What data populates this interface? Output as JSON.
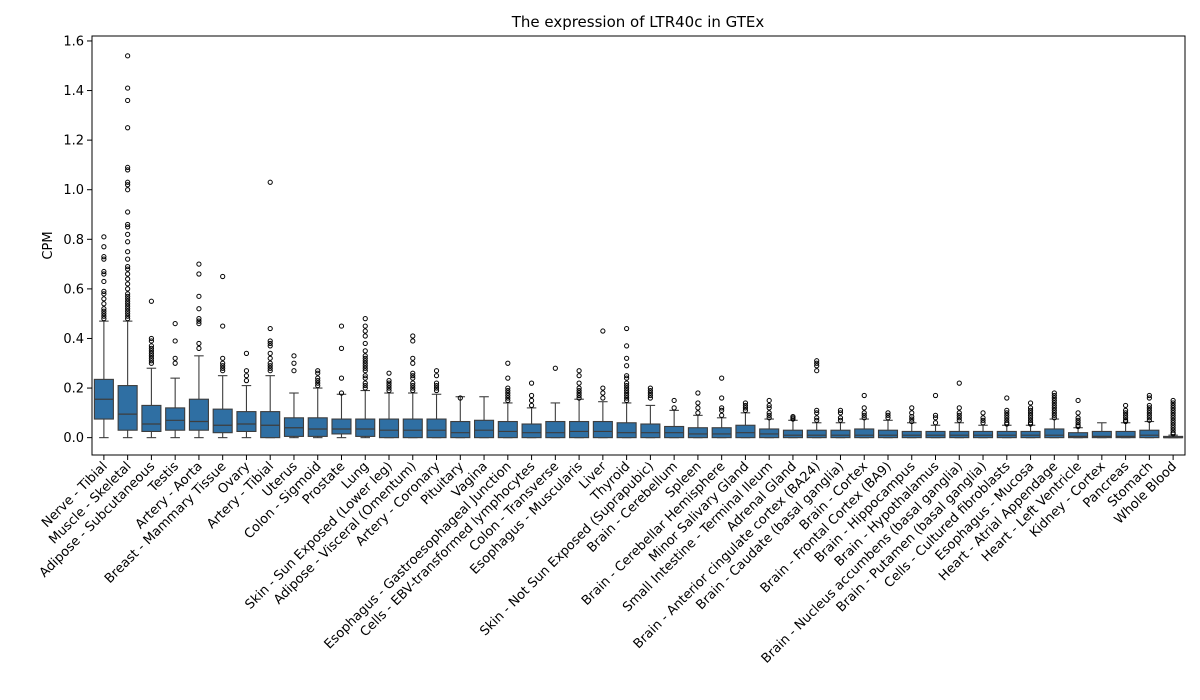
{
  "chart_data": {
    "type": "box",
    "title": "The expression of LTR40c in GTEx",
    "xlabel": "",
    "ylabel": "CPM",
    "ylim": [
      -0.07,
      1.62
    ],
    "yticks": [
      0.0,
      0.2,
      0.4,
      0.6,
      0.8,
      1.0,
      1.2,
      1.4,
      1.6
    ],
    "ytick_labels": [
      "0.0",
      "0.2",
      "0.4",
      "0.6",
      "0.8",
      "1.0",
      "1.2",
      "1.4",
      "1.6"
    ],
    "grid": false,
    "legend": "none",
    "box_color": "#2f6fa3",
    "categories": [
      {
        "name": "Nerve - Tibial",
        "whisker_low": 0.0,
        "q1": 0.075,
        "median": 0.155,
        "q3": 0.235,
        "whisker_high": 0.47,
        "outliers": [
          0.48,
          0.49,
          0.5,
          0.51,
          0.52,
          0.54,
          0.56,
          0.58,
          0.59,
          0.63,
          0.66,
          0.67,
          0.72,
          0.73,
          0.77,
          0.81
        ]
      },
      {
        "name": "Muscle - Skeletal",
        "whisker_low": 0.0,
        "q1": 0.03,
        "median": 0.095,
        "q3": 0.21,
        "whisker_high": 0.47,
        "outliers": [
          0.48,
          0.49,
          0.5,
          0.51,
          0.52,
          0.53,
          0.54,
          0.55,
          0.56,
          0.57,
          0.58,
          0.6,
          0.62,
          0.64,
          0.66,
          0.68,
          0.69,
          0.72,
          0.75,
          0.79,
          0.82,
          0.85,
          0.86,
          0.91,
          1.0,
          1.02,
          1.03,
          1.08,
          1.09,
          1.25,
          1.36,
          1.41,
          1.54
        ]
      },
      {
        "name": "Adipose - Subcutaneous",
        "whisker_low": 0.0,
        "q1": 0.025,
        "median": 0.055,
        "q3": 0.13,
        "whisker_high": 0.28,
        "outliers": [
          0.3,
          0.31,
          0.32,
          0.33,
          0.34,
          0.35,
          0.36,
          0.37,
          0.39,
          0.4,
          0.55
        ]
      },
      {
        "name": "Testis",
        "whisker_low": 0.0,
        "q1": 0.03,
        "median": 0.07,
        "q3": 0.12,
        "whisker_high": 0.24,
        "outliers": [
          0.3,
          0.32,
          0.39,
          0.46
        ]
      },
      {
        "name": "Artery - Aorta",
        "whisker_low": 0.0,
        "q1": 0.03,
        "median": 0.065,
        "q3": 0.155,
        "whisker_high": 0.33,
        "outliers": [
          0.36,
          0.38,
          0.46,
          0.47,
          0.48,
          0.52,
          0.57,
          0.66,
          0.7
        ]
      },
      {
        "name": "Breast - Mammary Tissue",
        "whisker_low": 0.0,
        "q1": 0.02,
        "median": 0.05,
        "q3": 0.115,
        "whisker_high": 0.25,
        "outliers": [
          0.27,
          0.28,
          0.29,
          0.3,
          0.32,
          0.45,
          0.65
        ]
      },
      {
        "name": "Ovary",
        "whisker_low": 0.0,
        "q1": 0.025,
        "median": 0.055,
        "q3": 0.105,
        "whisker_high": 0.21,
        "outliers": [
          0.23,
          0.25,
          0.27,
          0.34
        ]
      },
      {
        "name": "Artery - Tibial",
        "whisker_low": 0.0,
        "q1": 0.0,
        "median": 0.05,
        "q3": 0.105,
        "whisker_high": 0.25,
        "outliers": [
          0.27,
          0.28,
          0.29,
          0.3,
          0.32,
          0.34,
          0.37,
          0.38,
          0.39,
          0.44,
          1.03
        ]
      },
      {
        "name": "Uterus",
        "whisker_low": 0.0,
        "q1": 0.005,
        "median": 0.04,
        "q3": 0.08,
        "whisker_high": 0.18,
        "outliers": [
          0.27,
          0.3,
          0.33
        ]
      },
      {
        "name": "Colon - Sigmoid",
        "whisker_low": 0.0,
        "q1": 0.005,
        "median": 0.035,
        "q3": 0.08,
        "whisker_high": 0.2,
        "outliers": [
          0.21,
          0.22,
          0.23,
          0.24,
          0.26,
          0.27
        ]
      },
      {
        "name": "Prostate",
        "whisker_low": 0.0,
        "q1": 0.015,
        "median": 0.035,
        "q3": 0.075,
        "whisker_high": 0.175,
        "outliers": [
          0.18,
          0.24,
          0.36,
          0.45
        ]
      },
      {
        "name": "Lung",
        "whisker_low": 0.0,
        "q1": 0.005,
        "median": 0.035,
        "q3": 0.075,
        "whisker_high": 0.19,
        "outliers": [
          0.2,
          0.21,
          0.22,
          0.24,
          0.25,
          0.27,
          0.28,
          0.29,
          0.3,
          0.31,
          0.32,
          0.33,
          0.35,
          0.38,
          0.41,
          0.43,
          0.45,
          0.48
        ]
      },
      {
        "name": "Skin - Sun Exposed (Lower leg)",
        "whisker_low": 0.0,
        "q1": 0.0,
        "median": 0.03,
        "q3": 0.075,
        "whisker_high": 0.18,
        "outliers": [
          0.19,
          0.2,
          0.21,
          0.22,
          0.23,
          0.26
        ]
      },
      {
        "name": "Adipose - Visceral (Omentum)",
        "whisker_low": 0.0,
        "q1": 0.0,
        "median": 0.03,
        "q3": 0.075,
        "whisker_high": 0.18,
        "outliers": [
          0.19,
          0.2,
          0.21,
          0.22,
          0.24,
          0.25,
          0.26,
          0.3,
          0.32,
          0.39,
          0.41
        ]
      },
      {
        "name": "Artery - Coronary",
        "whisker_low": 0.0,
        "q1": 0.0,
        "median": 0.03,
        "q3": 0.075,
        "whisker_high": 0.175,
        "outliers": [
          0.19,
          0.2,
          0.21,
          0.22,
          0.25,
          0.27
        ]
      },
      {
        "name": "Pituitary",
        "whisker_low": 0.0,
        "q1": 0.0,
        "median": 0.02,
        "q3": 0.065,
        "whisker_high": 0.165,
        "outliers": [
          0.16
        ]
      },
      {
        "name": "Vagina",
        "whisker_low": 0.0,
        "q1": 0.0,
        "median": 0.03,
        "q3": 0.07,
        "whisker_high": 0.165,
        "outliers": []
      },
      {
        "name": "Esophagus - Gastroesophageal Junction",
        "whisker_low": 0.0,
        "q1": 0.0,
        "median": 0.025,
        "q3": 0.065,
        "whisker_high": 0.14,
        "outliers": [
          0.15,
          0.16,
          0.17,
          0.18,
          0.19,
          0.2,
          0.24,
          0.3
        ]
      },
      {
        "name": "Cells - EBV-transformed lymphocytes",
        "whisker_low": 0.0,
        "q1": 0.0,
        "median": 0.02,
        "q3": 0.055,
        "whisker_high": 0.12,
        "outliers": [
          0.13,
          0.15,
          0.17,
          0.22
        ]
      },
      {
        "name": "Colon - Transverse",
        "whisker_low": 0.0,
        "q1": 0.0,
        "median": 0.02,
        "q3": 0.065,
        "whisker_high": 0.14,
        "outliers": [
          0.28
        ]
      },
      {
        "name": "Esophagus - Muscularis",
        "whisker_low": 0.0,
        "q1": 0.0,
        "median": 0.025,
        "q3": 0.065,
        "whisker_high": 0.155,
        "outliers": [
          0.16,
          0.17,
          0.18,
          0.19,
          0.2,
          0.22,
          0.25,
          0.27
        ]
      },
      {
        "name": "Liver",
        "whisker_low": 0.0,
        "q1": 0.0,
        "median": 0.025,
        "q3": 0.065,
        "whisker_high": 0.145,
        "outliers": [
          0.16,
          0.18,
          0.2,
          0.43
        ]
      },
      {
        "name": "Thyroid",
        "whisker_low": 0.0,
        "q1": 0.0,
        "median": 0.02,
        "q3": 0.06,
        "whisker_high": 0.14,
        "outliers": [
          0.15,
          0.16,
          0.17,
          0.18,
          0.19,
          0.2,
          0.21,
          0.22,
          0.24,
          0.25,
          0.29,
          0.32,
          0.37,
          0.44
        ]
      },
      {
        "name": "Skin - Not Sun Exposed (Suprapubic)",
        "whisker_low": 0.0,
        "q1": 0.0,
        "median": 0.02,
        "q3": 0.055,
        "whisker_high": 0.13,
        "outliers": [
          0.16,
          0.17,
          0.18,
          0.19,
          0.2
        ]
      },
      {
        "name": "Brain - Cerebellum",
        "whisker_low": 0.0,
        "q1": 0.0,
        "median": 0.02,
        "q3": 0.045,
        "whisker_high": 0.11,
        "outliers": [
          0.12,
          0.15
        ]
      },
      {
        "name": "Spleen",
        "whisker_low": 0.0,
        "q1": 0.0,
        "median": 0.015,
        "q3": 0.04,
        "whisker_high": 0.09,
        "outliers": [
          0.1,
          0.12,
          0.14,
          0.18
        ]
      },
      {
        "name": "Brain - Cerebellar Hemisphere",
        "whisker_low": 0.0,
        "q1": 0.0,
        "median": 0.015,
        "q3": 0.04,
        "whisker_high": 0.08,
        "outliers": [
          0.09,
          0.11,
          0.12,
          0.16,
          0.24
        ]
      },
      {
        "name": "Minor Salivary Gland",
        "whisker_low": 0.0,
        "q1": 0.0,
        "median": 0.02,
        "q3": 0.05,
        "whisker_high": 0.1,
        "outliers": [
          0.11,
          0.12,
          0.13,
          0.14
        ]
      },
      {
        "name": "Small Intestine - Terminal Ileum",
        "whisker_low": 0.0,
        "q1": 0.0,
        "median": 0.015,
        "q3": 0.035,
        "whisker_high": 0.075,
        "outliers": [
          0.08,
          0.09,
          0.1,
          0.12,
          0.13,
          0.15
        ]
      },
      {
        "name": "Adrenal Gland",
        "whisker_low": 0.0,
        "q1": 0.0,
        "median": 0.01,
        "q3": 0.03,
        "whisker_high": 0.07,
        "outliers": [
          0.075,
          0.08,
          0.085
        ]
      },
      {
        "name": "Brain - Anterior cingulate cortex (BA24)",
        "whisker_low": 0.0,
        "q1": 0.0,
        "median": 0.01,
        "q3": 0.03,
        "whisker_high": 0.06,
        "outliers": [
          0.07,
          0.08,
          0.1,
          0.11,
          0.27,
          0.29,
          0.3,
          0.31
        ]
      },
      {
        "name": "Brain - Caudate (basal ganglia)",
        "whisker_low": 0.0,
        "q1": 0.0,
        "median": 0.01,
        "q3": 0.03,
        "whisker_high": 0.06,
        "outliers": [
          0.07,
          0.08,
          0.1,
          0.11
        ]
      },
      {
        "name": "Brain - Cortex",
        "whisker_low": 0.0,
        "q1": 0.0,
        "median": 0.01,
        "q3": 0.035,
        "whisker_high": 0.075,
        "outliers": [
          0.08,
          0.09,
          0.1,
          0.12,
          0.17
        ]
      },
      {
        "name": "Brain - Frontal Cortex (BA9)",
        "whisker_low": 0.0,
        "q1": 0.0,
        "median": 0.01,
        "q3": 0.03,
        "whisker_high": 0.07,
        "outliers": [
          0.08,
          0.09,
          0.1
        ]
      },
      {
        "name": "Brain - Hippocampus",
        "whisker_low": 0.0,
        "q1": 0.0,
        "median": 0.01,
        "q3": 0.025,
        "whisker_high": 0.06,
        "outliers": [
          0.065,
          0.075,
          0.085,
          0.1,
          0.12
        ]
      },
      {
        "name": "Brain - Hypothalamus",
        "whisker_low": 0.0,
        "q1": 0.0,
        "median": 0.01,
        "q3": 0.025,
        "whisker_high": 0.05,
        "outliers": [
          0.06,
          0.08,
          0.09,
          0.17
        ]
      },
      {
        "name": "Brain - Nucleus accumbens (basal ganglia)",
        "whisker_low": 0.0,
        "q1": 0.0,
        "median": 0.01,
        "q3": 0.025,
        "whisker_high": 0.06,
        "outliers": [
          0.07,
          0.08,
          0.09,
          0.1,
          0.12,
          0.22
        ]
      },
      {
        "name": "Brain - Putamen (basal ganglia)",
        "whisker_low": 0.0,
        "q1": 0.0,
        "median": 0.01,
        "q3": 0.025,
        "whisker_high": 0.05,
        "outliers": [
          0.06,
          0.07,
          0.08,
          0.1
        ]
      },
      {
        "name": "Cells - Cultured fibroblasts",
        "whisker_low": 0.0,
        "q1": 0.0,
        "median": 0.01,
        "q3": 0.025,
        "whisker_high": 0.05,
        "outliers": [
          0.055,
          0.06,
          0.07,
          0.08,
          0.09,
          0.1,
          0.11,
          0.16
        ]
      },
      {
        "name": "Esophagus - Mucosa",
        "whisker_low": 0.0,
        "q1": 0.0,
        "median": 0.01,
        "q3": 0.025,
        "whisker_high": 0.05,
        "outliers": [
          0.055,
          0.06,
          0.07,
          0.08,
          0.09,
          0.1,
          0.11,
          0.12,
          0.14
        ]
      },
      {
        "name": "Heart - Atrial Appendage",
        "whisker_low": 0.0,
        "q1": 0.0,
        "median": 0.01,
        "q3": 0.035,
        "whisker_high": 0.075,
        "outliers": [
          0.08,
          0.09,
          0.1,
          0.11,
          0.12,
          0.13,
          0.14,
          0.15,
          0.16,
          0.17,
          0.18
        ]
      },
      {
        "name": "Heart - Left Ventricle",
        "whisker_low": 0.0,
        "q1": 0.0,
        "median": 0.005,
        "q3": 0.02,
        "whisker_high": 0.04,
        "outliers": [
          0.045,
          0.05,
          0.06,
          0.07,
          0.08,
          0.1,
          0.15
        ]
      },
      {
        "name": "Kidney - Cortex",
        "whisker_low": 0.0,
        "q1": 0.0,
        "median": 0.005,
        "q3": 0.025,
        "whisker_high": 0.06,
        "outliers": []
      },
      {
        "name": "Pancreas",
        "whisker_low": 0.0,
        "q1": 0.0,
        "median": 0.005,
        "q3": 0.025,
        "whisker_high": 0.06,
        "outliers": [
          0.065,
          0.07,
          0.08,
          0.09,
          0.1,
          0.11,
          0.13
        ]
      },
      {
        "name": "Stomach",
        "whisker_low": 0.0,
        "q1": 0.0,
        "median": 0.01,
        "q3": 0.03,
        "whisker_high": 0.065,
        "outliers": [
          0.07,
          0.08,
          0.09,
          0.1,
          0.11,
          0.12,
          0.13,
          0.16,
          0.17
        ]
      },
      {
        "name": "Whole Blood",
        "whisker_low": 0.0,
        "q1": 0.0,
        "median": 0.0,
        "q3": 0.005,
        "whisker_high": 0.01,
        "outliers": [
          0.015,
          0.02,
          0.03,
          0.04,
          0.05,
          0.06,
          0.07,
          0.08,
          0.09,
          0.1,
          0.11,
          0.12,
          0.13,
          0.14,
          0.15
        ]
      }
    ]
  }
}
